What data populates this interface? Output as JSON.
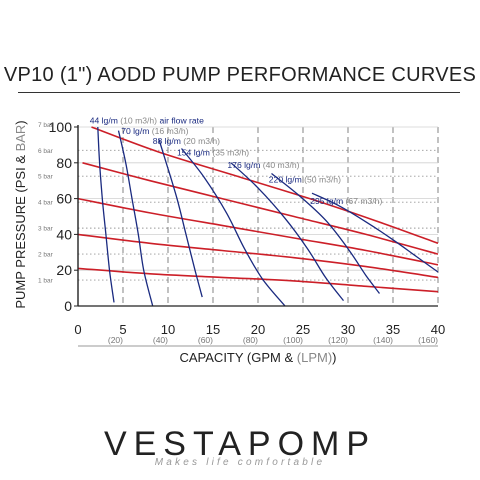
{
  "page": {
    "title": "VP10 (1\") AODD PUMP PERFORMANCE CURVES"
  },
  "brand": {
    "name": "VESTAPOMP",
    "tagline": "Makes life comfortable"
  },
  "chart_data": {
    "type": "line",
    "title": "VP10 (1\") AODD PUMP PERFORMANCE CURVES",
    "xlabel": {
      "main": "CAPACITY (GPM & ",
      "secondary": "(LPM)",
      "close": ")"
    },
    "ylabel": {
      "main": "PUMP PRESSURE (PSI & ",
      "secondary": "BAR",
      "close": ")"
    },
    "xlim": [
      0,
      40
    ],
    "ylim": [
      0,
      100
    ],
    "x_ticks": [
      "0",
      "5",
      "10",
      "15",
      "20",
      "25",
      "30",
      "35",
      "40"
    ],
    "x_secondary_ticks": [
      {
        "x": 5,
        "label": "(20)"
      },
      {
        "x": 10,
        "label": "(40)"
      },
      {
        "x": 15,
        "label": "(60)"
      },
      {
        "x": 20,
        "label": "(80)"
      },
      {
        "x": 25,
        "label": "(100)"
      },
      {
        "x": 30,
        "label": "(120)"
      },
      {
        "x": 35,
        "label": "(140)"
      },
      {
        "x": 40,
        "label": "(160)"
      }
    ],
    "y_ticks": [
      "0",
      "20",
      "40",
      "60",
      "80",
      "100"
    ],
    "y_secondary_ticks": [
      {
        "y": 14.5,
        "label": "1 bar"
      },
      {
        "y": 29,
        "label": "2 bar"
      },
      {
        "y": 43.5,
        "label": "3 bar"
      },
      {
        "y": 58,
        "label": "4 bar"
      },
      {
        "y": 72.5,
        "label": "5 bar"
      },
      {
        "y": 87,
        "label": "6 bar"
      },
      {
        "y": 101.5,
        "label": "7 bar"
      }
    ],
    "grid": true,
    "air_pressure_lines": [
      {
        "points": [
          [
            1.5,
            100
          ],
          [
            9,
            86
          ],
          [
            18,
            72
          ],
          [
            27,
            58
          ],
          [
            34,
            46
          ],
          [
            40,
            35
          ]
        ]
      },
      {
        "points": [
          [
            0.5,
            80
          ],
          [
            8,
            70
          ],
          [
            16,
            60
          ],
          [
            24,
            50
          ],
          [
            32,
            40
          ],
          [
            40,
            29
          ]
        ]
      },
      {
        "points": [
          [
            0,
            60
          ],
          [
            8,
            52
          ],
          [
            16,
            45
          ],
          [
            24,
            38
          ],
          [
            32,
            31
          ],
          [
            40,
            23
          ]
        ]
      },
      {
        "points": [
          [
            0,
            40
          ],
          [
            8,
            35
          ],
          [
            16,
            31
          ],
          [
            24,
            27
          ],
          [
            32,
            22
          ],
          [
            40,
            16
          ]
        ]
      },
      {
        "points": [
          [
            0,
            21
          ],
          [
            8,
            18
          ],
          [
            16,
            16
          ],
          [
            24,
            14
          ],
          [
            32,
            11
          ],
          [
            40,
            8
          ]
        ]
      }
    ],
    "air_flow_lines": [
      {
        "label_main": "44 lg/m ",
        "label_secondary": "(10 m3/h) ",
        "label_extra": "air flow rate",
        "label_at": [
          1.3,
          102
        ],
        "points": [
          [
            2.2,
            100
          ],
          [
            2.4,
            80
          ],
          [
            2.7,
            60
          ],
          [
            3.1,
            40
          ],
          [
            3.5,
            20
          ],
          [
            4.0,
            2
          ]
        ]
      },
      {
        "label_main": "70 lg/m ",
        "label_secondary": "(16 m3/h)",
        "label_at": [
          4.8,
          96
        ],
        "points": [
          [
            4.5,
            98
          ],
          [
            5.3,
            80
          ],
          [
            6.0,
            60
          ],
          [
            6.7,
            40
          ],
          [
            7.3,
            20
          ],
          [
            8.3,
            0
          ]
        ]
      },
      {
        "label_main": "88 lg/m ",
        "label_secondary": "(20 m3/h)",
        "label_at": [
          8.3,
          90.5
        ],
        "points": [
          [
            9.0,
            93
          ],
          [
            9.8,
            80
          ],
          [
            11.0,
            60
          ],
          [
            12.0,
            40
          ],
          [
            13.0,
            20
          ],
          [
            13.8,
            5
          ]
        ]
      },
      {
        "label_main": "154 lg/m ",
        "label_secondary": "(35 m3/h)",
        "label_at": [
          11.0,
          84
        ],
        "points": [
          [
            11.5,
            88
          ],
          [
            14.0,
            72
          ],
          [
            16.5,
            52
          ],
          [
            18.5,
            32
          ],
          [
            20.5,
            15
          ],
          [
            23.0,
            0
          ]
        ]
      },
      {
        "label_main": "176 lg/m ",
        "label_secondary": "(40 m3/h)",
        "label_at": [
          16.6,
          77
        ],
        "points": [
          [
            17.0,
            80
          ],
          [
            20.0,
            66
          ],
          [
            23.0,
            49
          ],
          [
            25.5,
            32
          ],
          [
            27.5,
            16
          ],
          [
            29.5,
            3
          ]
        ]
      },
      {
        "label_main": "220 lg/m ",
        "label_secondary": "(50 m3/h)",
        "label_at": [
          21.2,
          69
        ],
        "points": [
          [
            21.5,
            74
          ],
          [
            24.5,
            62
          ],
          [
            27.5,
            48
          ],
          [
            30.0,
            32
          ],
          [
            32.0,
            17
          ],
          [
            33.5,
            7
          ]
        ]
      },
      {
        "label_main": "295 lg/m ",
        "label_secondary": "(67 m3/h)",
        "label_at": [
          25.8,
          57
        ],
        "points": [
          [
            26.0,
            63
          ],
          [
            29.0,
            56
          ],
          [
            32.0,
            47
          ],
          [
            35.0,
            37
          ],
          [
            37.5,
            28
          ],
          [
            40.0,
            19
          ]
        ]
      }
    ],
    "colors": {
      "air_pressure": "#cc1f28",
      "air_flow": "#1a2a80",
      "label_secondary": "#888888",
      "grid": "#777777"
    }
  }
}
